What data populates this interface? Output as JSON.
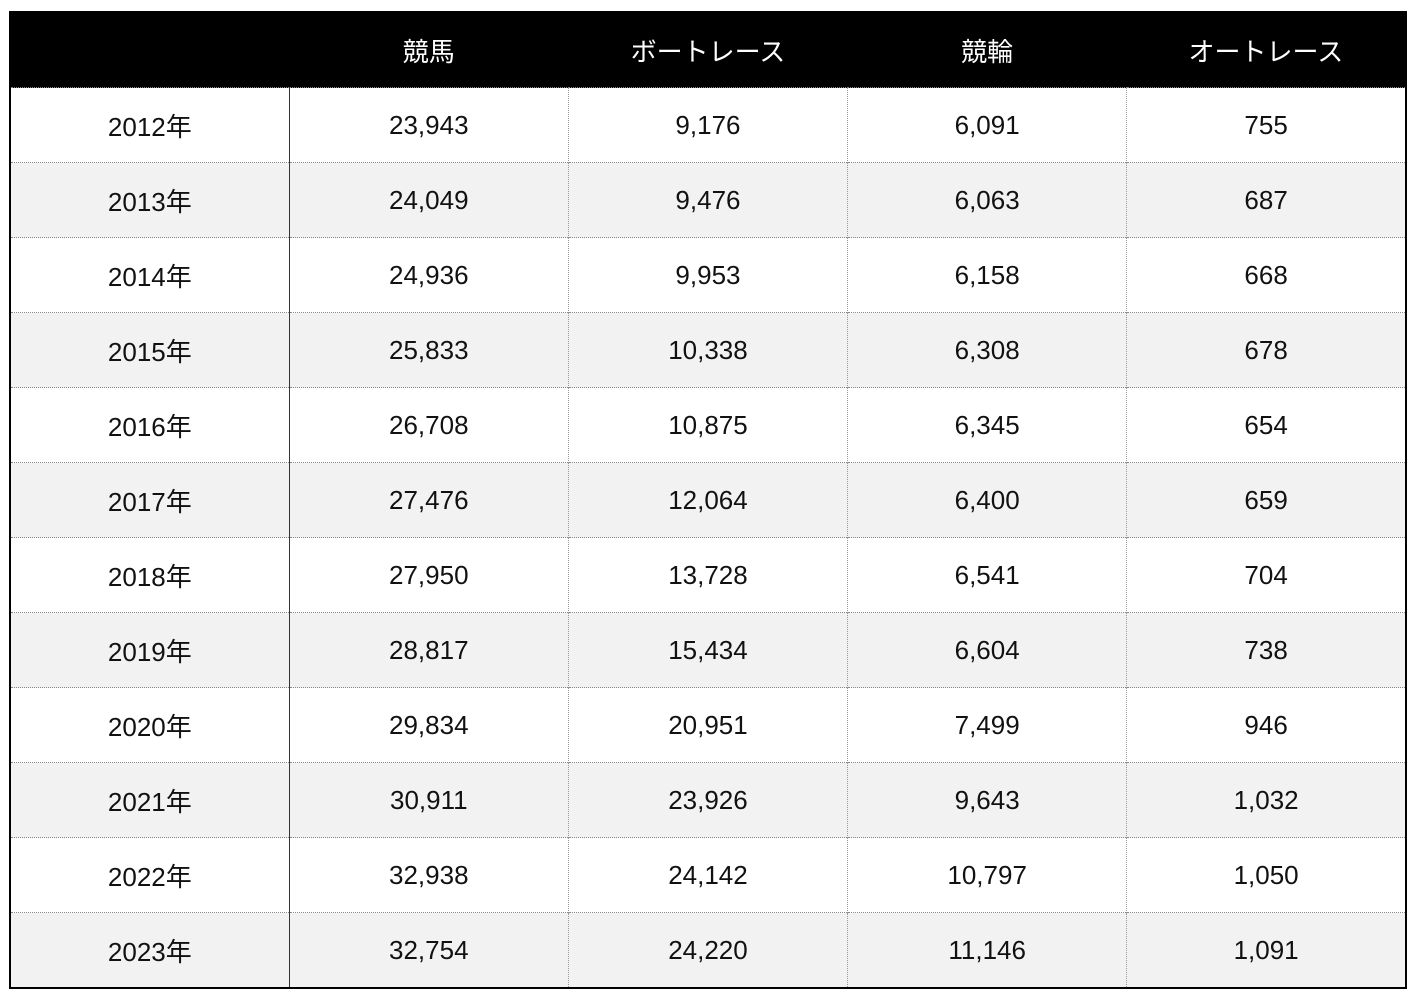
{
  "table": {
    "header": [
      "",
      "競馬",
      "ボートレース",
      "競輪",
      "オートレース"
    ],
    "rows": [
      [
        "2012年",
        "23,943",
        "9,176",
        "6,091",
        "755"
      ],
      [
        "2013年",
        "24,049",
        "9,476",
        "6,063",
        "687"
      ],
      [
        "2014年",
        "24,936",
        "9,953",
        "6,158",
        "668"
      ],
      [
        "2015年",
        "25,833",
        "10,338",
        "6,308",
        "678"
      ],
      [
        "2016年",
        "26,708",
        "10,875",
        "6,345",
        "654"
      ],
      [
        "2017年",
        "27,476",
        "12,064",
        "6,400",
        "659"
      ],
      [
        "2018年",
        "27,950",
        "13,728",
        "6,541",
        "704"
      ],
      [
        "2019年",
        "28,817",
        "15,434",
        "6,604",
        "738"
      ],
      [
        "2020年",
        "29,834",
        "20,951",
        "7,499",
        "946"
      ],
      [
        "2021年",
        "30,911",
        "23,926",
        "9,643",
        "1,032"
      ],
      [
        "2022年",
        "32,938",
        "24,142",
        "10,797",
        "1,050"
      ],
      [
        "2023年",
        "32,754",
        "24,220",
        "11,146",
        "1,091"
      ]
    ]
  }
}
